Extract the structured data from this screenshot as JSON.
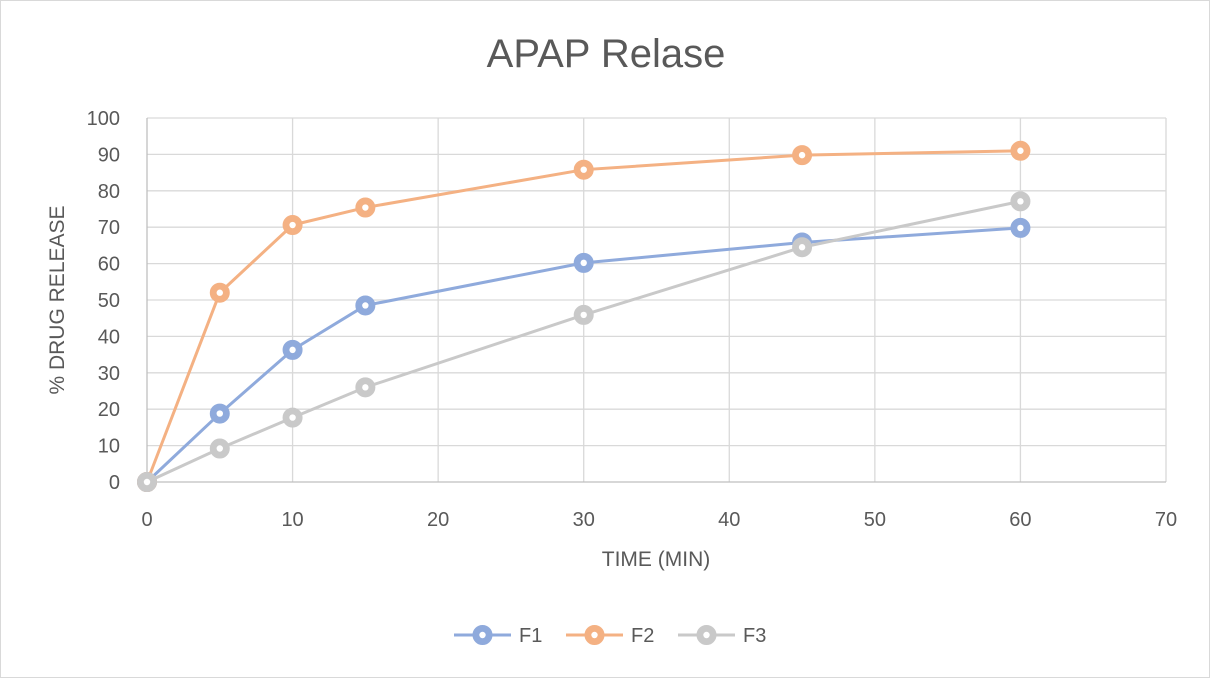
{
  "chart_data": {
    "type": "scatter",
    "title": "APAP Relase",
    "xlabel": "TIME (MIN)",
    "ylabel": "% DRUG RELEASE",
    "xlim": [
      0,
      70
    ],
    "ylim": [
      0,
      100
    ],
    "x_ticks": [
      0,
      10,
      20,
      30,
      40,
      50,
      60,
      70
    ],
    "y_ticks": [
      0,
      10,
      20,
      30,
      40,
      50,
      60,
      70,
      80,
      90,
      100
    ],
    "grid": true,
    "legend_position": "bottom",
    "lines": true,
    "markers": true,
    "series": [
      {
        "name": "F1",
        "color": "#8faadc",
        "points": [
          [
            0,
            0
          ],
          [
            5,
            18.8
          ],
          [
            10,
            36.3
          ],
          [
            15,
            48.5
          ],
          [
            30,
            60.2
          ],
          [
            45,
            65.8
          ],
          [
            60,
            69.8
          ]
        ]
      },
      {
        "name": "F2",
        "color": "#f4b183",
        "points": [
          [
            0,
            0
          ],
          [
            5,
            52.0
          ],
          [
            10,
            70.6
          ],
          [
            15,
            75.4
          ],
          [
            30,
            85.8
          ],
          [
            45,
            89.8
          ],
          [
            60,
            91.0
          ]
        ]
      },
      {
        "name": "F3",
        "color": "#c9c9c9",
        "points": [
          [
            0,
            0
          ],
          [
            5,
            9.2
          ],
          [
            10,
            17.7
          ],
          [
            15,
            26.0
          ],
          [
            30,
            45.9
          ],
          [
            45,
            64.5
          ],
          [
            60,
            77.1
          ]
        ]
      }
    ]
  }
}
